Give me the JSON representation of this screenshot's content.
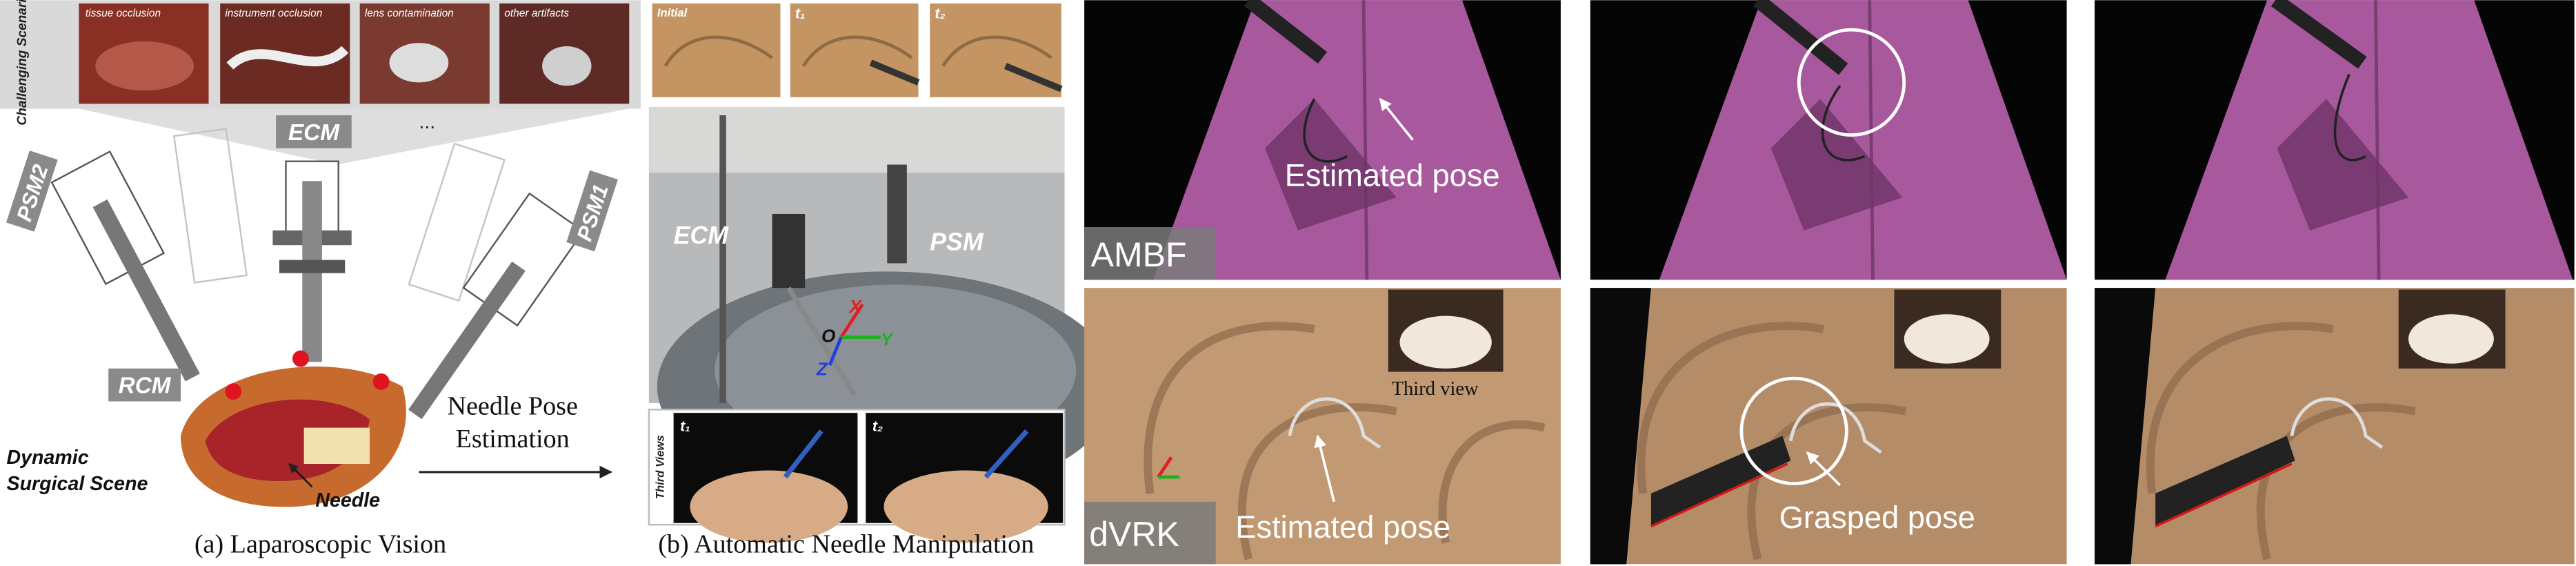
{
  "panel_a": {
    "scenarios_title": "Challenging Scenarios",
    "scenarios": [
      "tissue occlusion",
      "instrument occlusion",
      "lens contamination",
      "other artifacts"
    ],
    "ellipsis": "...",
    "labels": {
      "ecm": "ECM",
      "psm2": "PSM2",
      "psm1": "PSM1",
      "rcm": "RCM",
      "scene": [
        "Dynamic",
        "Surgical Scene"
      ],
      "needle": "Needle"
    },
    "caption": "(a) Laparoscopic Vision"
  },
  "arrow_label": [
    "Needle Pose",
    "Estimation"
  ],
  "panel_b": {
    "steps": [
      "Initial",
      "t₁",
      "t₂"
    ],
    "labels": {
      "ecm": "ECM",
      "psm": "PSM",
      "origin": "O",
      "x": "X",
      "y": "Y",
      "z": "Z"
    },
    "third_views_title": "Third Views",
    "third_views": [
      "t₁",
      "t₂"
    ],
    "caption": "(b) Automatic Needle Manipulation"
  },
  "results": {
    "rows": [
      {
        "label": "AMBF",
        "annotations": [
          "Estimated pose"
        ]
      },
      {
        "label": "dVRK",
        "inset": "Third view",
        "annotations": [
          "Estimated pose",
          "Grasped pose"
        ]
      }
    ]
  }
}
